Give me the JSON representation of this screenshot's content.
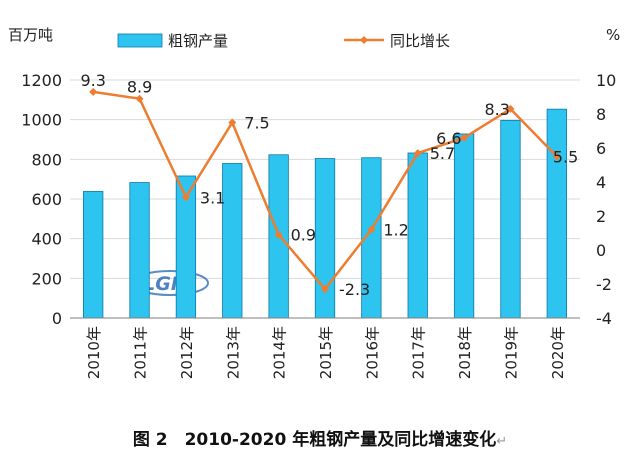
{
  "caption": {
    "text": "图 2　2010-2020 年粗钢产量及同比增速变化",
    "mark": "↵"
  },
  "watermark": {
    "text": "LGMI"
  },
  "colors": {
    "bar_fill": "#2EC4F0",
    "bar_stroke": "#0A78A8",
    "line": "#ED7D31",
    "grid": "#D9D9D9",
    "axis": "#7F7F7F",
    "watermark": "#2E6FB6"
  },
  "chart_data": {
    "type": "bar",
    "categories": [
      "2010年",
      "2011年",
      "2012年",
      "2013年",
      "2014年",
      "2015年",
      "2016年",
      "2017年",
      "2018年",
      "2019年",
      "2020年"
    ],
    "series": [
      {
        "name": "粗钢产量",
        "type": "bar",
        "axis": "left",
        "values": [
          638,
          683,
          716,
          779,
          823,
          804,
          808,
          832,
          928,
          996,
          1053
        ]
      },
      {
        "name": "同比增长",
        "type": "line",
        "axis": "right",
        "values": [
          9.3,
          8.9,
          3.1,
          7.5,
          0.9,
          -2.3,
          1.2,
          5.7,
          6.6,
          8.3,
          5.5
        ],
        "labels": [
          "9.3",
          "8.9",
          "3.1",
          "7.5",
          "0.9",
          "-2.3",
          "1.2",
          "5.7",
          "6.6",
          "8.3",
          "5.5"
        ]
      }
    ],
    "ylabel": "百万吨",
    "y2label": "%",
    "ylim": [
      0,
      1200
    ],
    "y2lim": [
      -4,
      10
    ],
    "yticks": [
      "0",
      "200",
      "400",
      "600",
      "800",
      "1000",
      "1200"
    ],
    "y2ticks": [
      "-4",
      "-2",
      "0",
      "2",
      "4",
      "6",
      "8",
      "10"
    ],
    "grid": true,
    "legend_position": "top"
  }
}
